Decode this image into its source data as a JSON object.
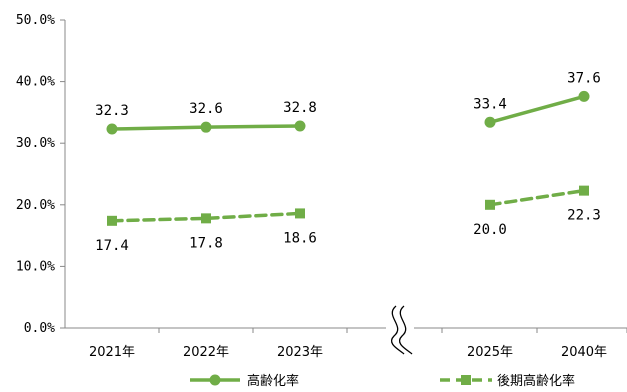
{
  "chart_data": {
    "type": "line",
    "categories": [
      "2021年",
      "2022年",
      "2023年",
      "2025年",
      "2040年"
    ],
    "ylim": [
      0,
      50
    ],
    "y_ticks": [
      "0.0%",
      "10.0%",
      "20.0%",
      "30.0%",
      "40.0%",
      "50.0%"
    ],
    "axis_break_after": "2023年",
    "grid": false,
    "legend_position": "bottom",
    "series": [
      {
        "name": "高齢化率",
        "values": [
          32.3,
          32.6,
          32.8,
          33.4,
          37.6
        ],
        "labels": [
          "32.3",
          "32.6",
          "32.8",
          "33.4",
          "37.6"
        ],
        "color": "#70AD47",
        "line_style": "solid",
        "marker": "circle",
        "label_position": "above"
      },
      {
        "name": "後期高齢化率",
        "values": [
          17.4,
          17.8,
          18.6,
          20.0,
          22.3
        ],
        "labels": [
          "17.4",
          "17.8",
          "18.6",
          "20.0",
          "22.3"
        ],
        "color": "#70AD47",
        "line_style": "dashed",
        "marker": "square",
        "label_position": "below"
      }
    ]
  }
}
